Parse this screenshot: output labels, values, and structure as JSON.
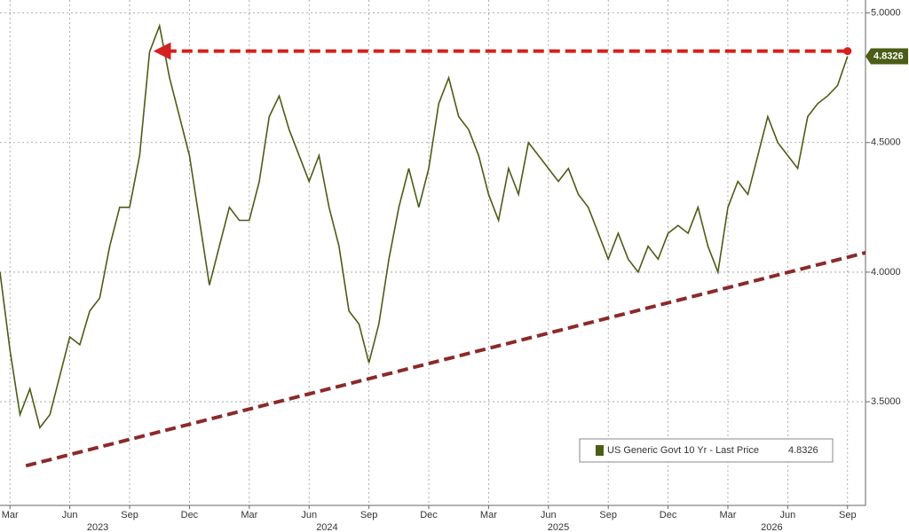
{
  "chart_data": {
    "type": "line",
    "x": [
      -0.5,
      0,
      0.5,
      1,
      1.5,
      2,
      2.5,
      3,
      3.5,
      4,
      4.5,
      5,
      5.5,
      6,
      6.5,
      7,
      7.5,
      8,
      8.5,
      9,
      9.5,
      10,
      10.5,
      11,
      11.5,
      12,
      12.5,
      13,
      13.5,
      14,
      14.5,
      15,
      15.5,
      16,
      16.5,
      17,
      17.5,
      18,
      18.5,
      19,
      19.5,
      20,
      20.5,
      21,
      21.5,
      22,
      22.5,
      23,
      23.5,
      24,
      24.5,
      25,
      25.5,
      26,
      26.5,
      27,
      27.5,
      28,
      28.5,
      29,
      29.5,
      30,
      30.5,
      31,
      31.5,
      32,
      32.5,
      33,
      33.5,
      34,
      34.5,
      35,
      35.5,
      36,
      36.5,
      37,
      37.5,
      38,
      38.5,
      39,
      39.5,
      40,
      40.5,
      41,
      41.5,
      42
    ],
    "series": [
      {
        "name": "US Generic Govt 10 Yr - Last Price",
        "color": "#4b5d16",
        "values": [
          4.0,
          3.7,
          3.45,
          3.55,
          3.4,
          3.45,
          3.6,
          3.75,
          3.72,
          3.85,
          3.9,
          4.1,
          4.25,
          4.25,
          4.45,
          4.85,
          4.95,
          4.75,
          4.6,
          4.45,
          4.2,
          3.95,
          4.1,
          4.25,
          4.2,
          4.2,
          4.35,
          4.6,
          4.68,
          4.55,
          4.45,
          4.35,
          4.45,
          4.25,
          4.1,
          3.85,
          3.8,
          3.65,
          3.8,
          4.05,
          4.25,
          4.4,
          4.25,
          4.4,
          4.65,
          4.75,
          4.6,
          4.55,
          4.45,
          4.3,
          4.2,
          4.4,
          4.3,
          4.5,
          4.45,
          4.4,
          4.35,
          4.4,
          4.3,
          4.25,
          4.15,
          4.05,
          4.15,
          4.05,
          4.0,
          4.1,
          4.05,
          4.15,
          4.18,
          4.15,
          4.25,
          4.1,
          4.0,
          4.25,
          4.35,
          4.3,
          4.45,
          4.6,
          4.5,
          4.45,
          4.4,
          4.6,
          4.65,
          4.68,
          4.72,
          4.8326
        ]
      }
    ],
    "xlim": [
      -0.5,
      42.9
    ],
    "ylim": [
      3.1,
      5.05
    ],
    "xticks": [
      {
        "value": 0,
        "label": "Mar"
      },
      {
        "value": 3,
        "label": "Jun"
      },
      {
        "value": 6,
        "label": "Sep"
      },
      {
        "value": 9,
        "label": "Dec"
      },
      {
        "value": 12,
        "label": "Mar"
      },
      {
        "value": 15,
        "label": "Jun"
      },
      {
        "value": 18,
        "label": "Sep"
      },
      {
        "value": 21,
        "label": "Dec"
      },
      {
        "value": 24,
        "label": "Mar"
      },
      {
        "value": 27,
        "label": "Jun"
      },
      {
        "value": 30,
        "label": "Sep"
      },
      {
        "value": 33,
        "label": "Dec"
      },
      {
        "value": 36,
        "label": "Mar"
      },
      {
        "value": 39,
        "label": "Jun"
      },
      {
        "value": 42,
        "label": "Sep"
      }
    ],
    "x_group_labels": [
      {
        "value": 4.4,
        "label": "2023"
      },
      {
        "value": 15.9,
        "label": "2024"
      },
      {
        "value": 27.5,
        "label": "2025"
      },
      {
        "value": 38.2,
        "label": "2026"
      }
    ],
    "yticks": [
      {
        "value": 3.5,
        "label": "3.5000"
      },
      {
        "value": 4.0,
        "label": "4.0000"
      },
      {
        "value": 4.5,
        "label": "4.5000"
      },
      {
        "value": 5.0,
        "label": "5.0000"
      }
    ],
    "grid": true,
    "legend": "lower right",
    "annotations": [
      {
        "x": [
          42,
          7.9
        ],
        "y": [
          4.853,
          4.853
        ],
        "color": "#d42020"
      },
      {
        "x": [
          0.8,
          42.9
        ],
        "y": [
          3.253,
          4.075
        ],
        "color": "#8b2a2a"
      }
    ]
  }
}
